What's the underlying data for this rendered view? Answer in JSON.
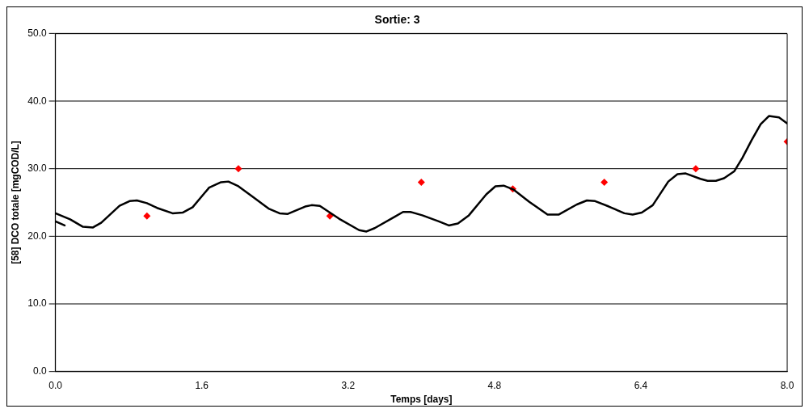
{
  "chart_data": {
    "type": "line",
    "title": "Sortie: 3",
    "xlabel": "Temps [days]",
    "ylabel": "[58] DCO totale [mgCOD/L]",
    "xlim": [
      0,
      8
    ],
    "xticks": [
      {
        "value": 0,
        "label": "0.0"
      },
      {
        "value": 1.6,
        "label": "1.6"
      },
      {
        "value": 3.2,
        "label": "3.2"
      },
      {
        "value": 4.8,
        "label": "4.8"
      },
      {
        "value": 6.4,
        "label": "6.4"
      },
      {
        "value": 8,
        "label": "8.0"
      }
    ],
    "ylim": [
      0,
      50
    ],
    "yticks": [
      {
        "value": 0,
        "label": "0.0"
      },
      {
        "value": 10,
        "label": "10.0"
      },
      {
        "value": 20,
        "label": "20.0"
      },
      {
        "value": 30,
        "label": "30.0"
      },
      {
        "value": 40,
        "label": "40.0"
      },
      {
        "value": 50,
        "label": "50.0"
      }
    ],
    "grid": "y",
    "legend": false,
    "series": [
      {
        "type": "line",
        "color": "#000000",
        "marker": "none",
        "line_style": "solid",
        "x": [
          0,
          0.16,
          0.3,
          0.41,
          0.5,
          0.7,
          0.81,
          0.89,
          1.0,
          1.11,
          1.28,
          1.39,
          1.5,
          1.68,
          1.81,
          1.89,
          2.0,
          2.16,
          2.33,
          2.45,
          2.54,
          2.73,
          2.8,
          2.89,
          2.99,
          3.1,
          3.32,
          3.4,
          3.49,
          3.71,
          3.8,
          3.88,
          4.01,
          4.19,
          4.3,
          4.4,
          4.52,
          4.71,
          4.81,
          4.9,
          5.01,
          5.18,
          5.38,
          5.5,
          5.7,
          5.81,
          5.9,
          6.05,
          6.22,
          6.31,
          6.41,
          6.53,
          6.7,
          6.8,
          6.89,
          7.05,
          7.13,
          7.22,
          7.31,
          7.42,
          7.51,
          7.61,
          7.71,
          7.8,
          7.91,
          8.0
        ],
        "values": [
          23.4,
          22.5,
          21.4,
          21.3,
          22.0,
          24.5,
          25.2,
          25.3,
          24.9,
          24.2,
          23.4,
          23.5,
          24.3,
          27.2,
          28.0,
          28.1,
          27.4,
          25.8,
          24.1,
          23.4,
          23.3,
          24.4,
          24.6,
          24.5,
          23.6,
          22.6,
          20.9,
          20.7,
          21.2,
          22.9,
          23.6,
          23.6,
          23.1,
          22.2,
          21.6,
          21.9,
          23.1,
          26.2,
          27.4,
          27.5,
          26.9,
          25.1,
          23.2,
          23.2,
          24.7,
          25.3,
          25.2,
          24.4,
          23.4,
          23.2,
          23.5,
          24.6,
          28.1,
          29.2,
          29.3,
          28.5,
          28.2,
          28.2,
          28.6,
          29.6,
          31.6,
          34.2,
          36.6,
          37.8,
          37.6,
          36.7
        ]
      },
      {
        "type": "line",
        "color": "#000000",
        "marker": "none",
        "line_style": "solid",
        "x": [
          0,
          0.1
        ],
        "values": [
          22.2,
          21.6
        ]
      },
      {
        "type": "scatter",
        "color": "#ff0000",
        "marker": "diamond",
        "x": [
          1,
          2,
          3,
          4,
          5,
          6,
          7,
          8
        ],
        "values": [
          23,
          30,
          23,
          28,
          27,
          28,
          30,
          34
        ]
      }
    ]
  }
}
